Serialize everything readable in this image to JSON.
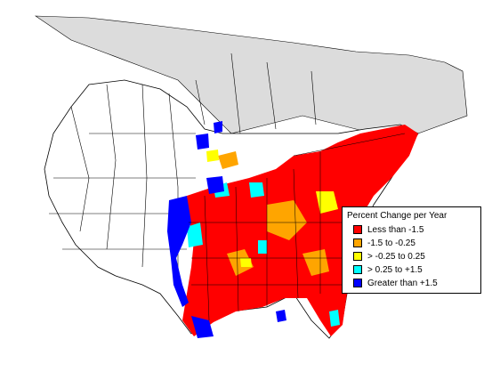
{
  "legend": {
    "title": "Percent Change per Year",
    "items": [
      {
        "label": "Less than -1.5",
        "color": "#ff0000"
      },
      {
        "label": "-1.5 to -0.25",
        "color": "#ffa500"
      },
      {
        "label": "> -0.25 to 0.25",
        "color": "#ffff00"
      },
      {
        "label": "> 0.25 to +1.5",
        "color": "#00ffff"
      },
      {
        "label": "Greater than +1.5",
        "color": "#0000ff"
      }
    ]
  },
  "colors": {
    "out_of_range": "#dcdcdc",
    "land": "#ffffff",
    "border": "#000000"
  }
}
